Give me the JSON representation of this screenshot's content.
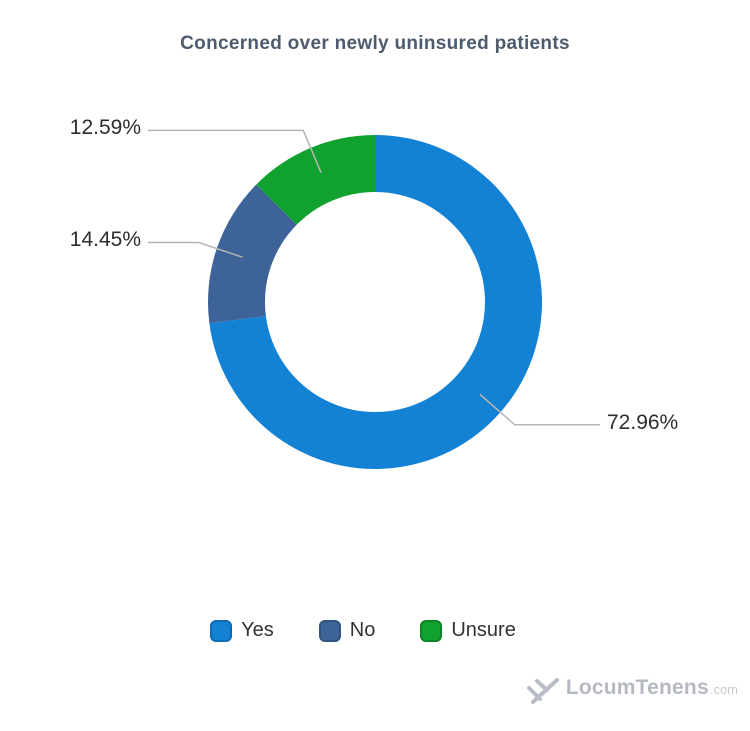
{
  "title": "Concerned over newly uninsured patients",
  "chart_data": {
    "type": "pie",
    "subtype": "donut",
    "title": "Concerned over newly uninsured patients",
    "categories": [
      "Yes",
      "No",
      "Unsure"
    ],
    "values": [
      72.96,
      14.45,
      12.59
    ],
    "labels": [
      "72.96%",
      "14.45%",
      "12.59%"
    ],
    "colors": [
      "#1482d4",
      "#3d6398",
      "#10a12e"
    ],
    "marker_border_colors": [
      "#0d6ab3",
      "#32537f",
      "#0b8526"
    ],
    "start_angle": 0,
    "direction": "clockwise",
    "legend_position": "bottom"
  },
  "branding": {
    "logo_text": "LocumTenens",
    "logo_suffix": ".com",
    "logo_icon": "locumtenens-check-icon"
  }
}
